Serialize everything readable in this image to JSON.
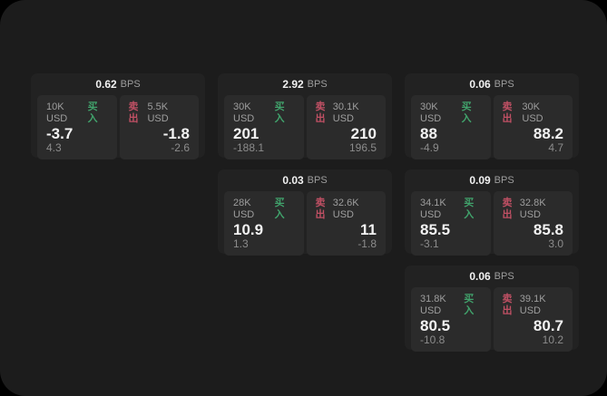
{
  "labels": {
    "buy": "买入",
    "sell": "卖出",
    "bps_unit": "BPS"
  },
  "colors": {
    "panel_bg": "#1c1c1c",
    "card_bg": "#222222",
    "tile_bg": "#2b2b2b",
    "text_primary": "#f2f2f2",
    "text_secondary": "#9e9e9e",
    "text_tertiary": "#8c8c8c",
    "buy_green": "#41a36c",
    "sell_red": "#c05064"
  },
  "cards": [
    {
      "bps": "0.62",
      "buy": {
        "amount": "10K USD",
        "value": "-3.7",
        "delta": "4.3"
      },
      "sell": {
        "amount": "5.5K USD",
        "value": "-1.8",
        "delta": "-2.6"
      }
    },
    {
      "bps": "2.92",
      "buy": {
        "amount": "30K USD",
        "value": "201",
        "delta": "-188.1"
      },
      "sell": {
        "amount": "30.1K USD",
        "value": "210",
        "delta": "196.5"
      }
    },
    {
      "bps": "0.06",
      "buy": {
        "amount": "30K USD",
        "value": "88",
        "delta": "-4.9"
      },
      "sell": {
        "amount": "30K USD",
        "value": "88.2",
        "delta": "4.7"
      }
    },
    {
      "bps": "0.03",
      "buy": {
        "amount": "28K USD",
        "value": "10.9",
        "delta": "1.3"
      },
      "sell": {
        "amount": "32.6K USD",
        "value": "11",
        "delta": "-1.8"
      }
    },
    {
      "bps": "0.09",
      "buy": {
        "amount": "34.1K USD",
        "value": "85.5",
        "delta": "-3.1"
      },
      "sell": {
        "amount": "32.8K USD",
        "value": "85.8",
        "delta": "3.0"
      }
    },
    {
      "bps": "0.06",
      "buy": {
        "amount": "31.8K USD",
        "value": "80.5",
        "delta": "-10.8"
      },
      "sell": {
        "amount": "39.1K USD",
        "value": "80.7",
        "delta": "10.2"
      }
    }
  ]
}
